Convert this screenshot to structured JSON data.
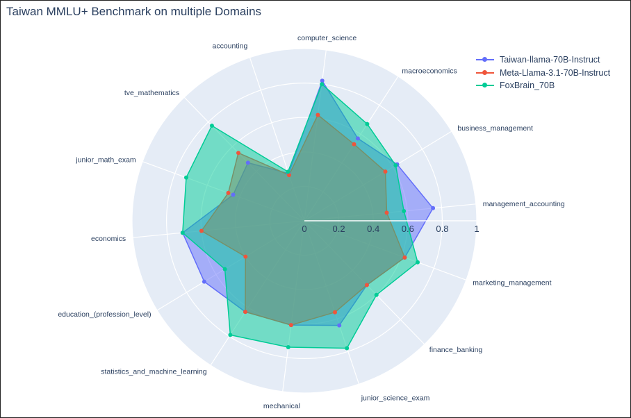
{
  "chart_data": {
    "type": "radar",
    "title": "Taiwan MMLU+ Benchmark on multiple Domains",
    "categories": [
      "management_accounting",
      "marketing_management",
      "finance_banking",
      "junior_science_exam",
      "mechanical",
      "statistics_and_machine_learning",
      "education_(profession_level)",
      "economics",
      "junior_math_exam",
      "tve_mathematics",
      "accounting",
      "computer_science",
      "macroeconomics",
      "business_management"
    ],
    "radial_range": [
      0,
      1
    ],
    "radial_ticks": [
      "0",
      "0.2",
      "0.4",
      "0.6",
      "0.8",
      "1"
    ],
    "series": [
      {
        "name": "Taiwan-llama-70B-Instruct",
        "color": "#636efa",
        "values": [
          0.75,
          0.62,
          0.52,
          0.64,
          0.61,
          0.63,
          0.68,
          0.71,
          0.44,
          0.47,
          0.29,
          0.82,
          0.57,
          0.63
        ]
      },
      {
        "name": "Meta-Llama-3.1-70B-Instruct",
        "color": "#ef553b",
        "values": [
          0.48,
          0.62,
          0.52,
          0.56,
          0.61,
          0.63,
          0.4,
          0.6,
          0.47,
          0.55,
          0.28,
          0.62,
          0.53,
          0.55
        ]
      },
      {
        "name": "FoxBrain_70B",
        "color": "#00cc96",
        "values": [
          0.58,
          0.7,
          0.6,
          0.78,
          0.74,
          0.79,
          0.54,
          0.71,
          0.73,
          0.77,
          0.3,
          0.8,
          0.67,
          0.62
        ]
      }
    ]
  }
}
